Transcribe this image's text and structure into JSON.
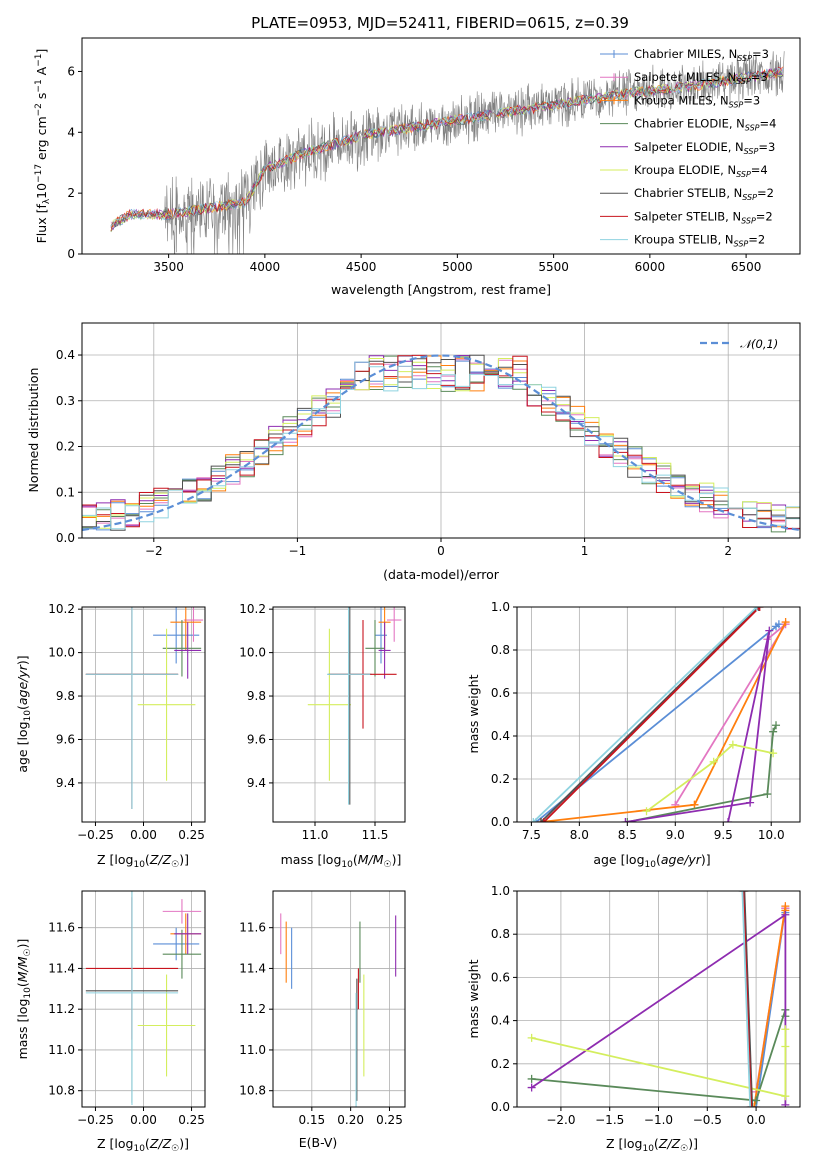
{
  "figure_title": "PLATE=0953, MJD=52411, FIBERID=0615, z=0.39",
  "colors": {
    "Chabrier MILES": "#5b8ed6",
    "Salpeter MILES": "#e377c2",
    "Kroupa MILES": "#ff7f0e",
    "Chabrier ELODIE": "#5a8a5a",
    "Salpeter ELODIE": "#8e2cb0",
    "Kroupa ELODIE": "#d4ee5e",
    "Chabrier STELIB": "#505050",
    "Salpeter STELIB": "#c8141e",
    "Kroupa STELIB": "#8fd3e0",
    "data": "#808080"
  },
  "chart_data": [
    {
      "id": "spectrum",
      "type": "line",
      "title": "PLATE=0953, MJD=52411, FIBERID=0615, z=0.39",
      "xlabel": "wavelength [Angstrom, rest frame]",
      "ylabel": "Flux [f_λ 10^-17 erg cm^-2 s^-1 A^-1]",
      "xlim": [
        3050,
        6780
      ],
      "ylim": [
        0,
        7.1
      ],
      "xticks": [
        3500,
        4000,
        4500,
        5000,
        5500,
        6000,
        6500
      ],
      "yticks": [
        0,
        2,
        4,
        6
      ],
      "continuum": {
        "x": [
          3200,
          3300,
          3500,
          3700,
          3900,
          4000,
          4200,
          4500,
          4800,
          5000,
          5300,
          5600,
          5900,
          6200,
          6500,
          6700
        ],
        "y": [
          0.9,
          1.3,
          1.3,
          1.5,
          1.7,
          2.8,
          3.3,
          3.9,
          4.2,
          4.4,
          4.7,
          5.0,
          5.3,
          5.5,
          5.8,
          6.0
        ]
      },
      "legend": [
        {
          "name": "Chabrier MILES",
          "label": "Chabrier MILES, N",
          "sub": "SSP",
          "suffix": "=3"
        },
        {
          "name": "Salpeter MILES",
          "label": "Salpeter MILES, N",
          "sub": "SSP",
          "suffix": "=3"
        },
        {
          "name": "Kroupa MILES",
          "label": "Kroupa MILES, N",
          "sub": "SSP",
          "suffix": "=3"
        },
        {
          "name": "Chabrier ELODIE",
          "label": "Chabrier ELODIE, N",
          "sub": "SSP",
          "suffix": "=4"
        },
        {
          "name": "Salpeter ELODIE",
          "label": "Salpeter ELODIE, N",
          "sub": "SSP",
          "suffix": "=3"
        },
        {
          "name": "Kroupa ELODIE",
          "label": "Kroupa ELODIE, N",
          "sub": "SSP",
          "suffix": "=4"
        },
        {
          "name": "Chabrier STELIB",
          "label": "Chabrier STELIB, N",
          "sub": "SSP",
          "suffix": "=2"
        },
        {
          "name": "Salpeter STELIB",
          "label": "Salpeter STELIB, N",
          "sub": "SSP",
          "suffix": "=2"
        },
        {
          "name": "Kroupa STELIB",
          "label": "Kroupa STELIB, N",
          "sub": "SSP",
          "suffix": "=2"
        }
      ]
    },
    {
      "id": "residuals",
      "type": "line",
      "xlabel": "(data-model)/error",
      "ylabel": "Normed distribution",
      "xlim": [
        -2.5,
        2.5
      ],
      "ylim": [
        0,
        0.47
      ],
      "xticks": [
        -2,
        -1,
        0,
        1,
        2
      ],
      "yticks": [
        0.0,
        0.1,
        0.2,
        0.3,
        0.4
      ],
      "legend_label": "𝒩(0,1)",
      "grid": true
    },
    {
      "id": "age_vs_Z",
      "type": "errorbar",
      "xlabel": "Z [log10(Z/Z☉)]",
      "ylabel": "age [log10(age/yr)]",
      "xlim": [
        -0.32,
        0.32
      ],
      "ylim": [
        9.22,
        10.21
      ],
      "xticks": [
        -0.25,
        0.0,
        0.25
      ],
      "yticks": [
        9.4,
        9.6,
        9.8,
        10.0,
        10.2
      ],
      "points": [
        {
          "name": "Chabrier MILES",
          "x": 0.17,
          "xerr": 0.12,
          "y": 10.08,
          "yerr": 0.13
        },
        {
          "name": "Salpeter MILES",
          "x": 0.26,
          "xerr": 0.05,
          "y": 10.15,
          "yerr": 0.1
        },
        {
          "name": "Kroupa MILES",
          "x": 0.22,
          "xerr": 0.08,
          "y": 10.14,
          "yerr": 0.13
        },
        {
          "name": "Chabrier ELODIE",
          "x": 0.2,
          "xerr": 0.1,
          "y": 10.02,
          "yerr": 0.13
        },
        {
          "name": "Salpeter ELODIE",
          "x": 0.23,
          "xerr": 0.07,
          "y": 10.01,
          "yerr": 0.13
        },
        {
          "name": "Kroupa ELODIE",
          "x": 0.12,
          "xerr": 0.15,
          "y": 9.76,
          "yerr": 0.35
        },
        {
          "name": "Chabrier STELIB",
          "x": -0.06,
          "xerr": 0.24,
          "y": 9.9,
          "yerr": 0.62
        },
        {
          "name": "Salpeter STELIB",
          "x": -0.06,
          "xerr": 0.24,
          "y": 9.9,
          "yerr": 0.62
        },
        {
          "name": "Kroupa STELIB",
          "x": -0.06,
          "xerr": 0.24,
          "y": 9.9,
          "yerr": 0.62
        }
      ]
    },
    {
      "id": "age_vs_mass",
      "type": "errorbar",
      "xlabel": "mass [log10(M/M☉)]",
      "xlim": [
        10.65,
        11.75
      ],
      "ylim": [
        9.22,
        10.21
      ],
      "xticks": [
        11.0,
        11.5
      ],
      "yticks": [
        9.4,
        9.6,
        9.8,
        10.0,
        10.2
      ],
      "points": [
        {
          "name": "Chabrier MILES",
          "x": 11.55,
          "xerr": 0.05,
          "y": 10.08,
          "yerr": 0.13
        },
        {
          "name": "Salpeter MILES",
          "x": 11.66,
          "xerr": 0.06,
          "y": 10.15,
          "yerr": 0.1
        },
        {
          "name": "Kroupa MILES",
          "x": 11.58,
          "xerr": 0.05,
          "y": 10.14,
          "yerr": 0.13
        },
        {
          "name": "Chabrier ELODIE",
          "x": 11.5,
          "xerr": 0.08,
          "y": 10.02,
          "yerr": 0.13
        },
        {
          "name": "Salpeter ELODIE",
          "x": 11.58,
          "xerr": 0.05,
          "y": 10.01,
          "yerr": 0.13
        },
        {
          "name": "Kroupa ELODIE",
          "x": 11.12,
          "xerr": 0.18,
          "y": 9.76,
          "yerr": 0.35
        },
        {
          "name": "Chabrier STELIB",
          "x": 11.29,
          "xerr": 0.18,
          "y": 9.9,
          "yerr": 0.6
        },
        {
          "name": "Salpeter STELIB",
          "x": 11.4,
          "xerr": 0.28,
          "y": 9.9,
          "yerr": 0.25
        },
        {
          "name": "Kroupa STELIB",
          "x": 11.28,
          "xerr": 0.18,
          "y": 9.9,
          "yerr": 0.6
        }
      ]
    },
    {
      "id": "massweight_vs_age",
      "type": "line",
      "xlabel": "age [log10(age/yr)]",
      "ylabel": "mass weight",
      "xlim": [
        7.35,
        10.3
      ],
      "ylim": [
        0,
        1.0
      ],
      "xticks": [
        7.5,
        8.0,
        8.5,
        9.0,
        9.5,
        10.0
      ],
      "yticks": [
        0.0,
        0.2,
        0.4,
        0.6,
        0.8,
        1.0
      ],
      "series": [
        {
          "name": "Chabrier MILES",
          "x": [
            7.55,
            10.08,
            10.05
          ],
          "y": [
            0.0,
            0.92,
            0.91
          ]
        },
        {
          "name": "Salpeter MILES",
          "x": [
            9.0,
            10.15,
            9.96
          ],
          "y": [
            0.08,
            0.92,
            0.85
          ]
        },
        {
          "name": "Kroupa MILES",
          "x": [
            7.6,
            9.2,
            10.15,
            9.2
          ],
          "y": [
            0.0,
            0.08,
            0.93,
            0.08
          ]
        },
        {
          "name": "Chabrier ELODIE",
          "x": [
            8.5,
            9.96,
            10.02,
            10.05
          ],
          "y": [
            0.0,
            0.13,
            0.42,
            0.45
          ]
        },
        {
          "name": "Salpeter ELODIE",
          "x": [
            8.48,
            9.78,
            9.98,
            9.55
          ],
          "y": [
            0.0,
            0.09,
            0.89,
            0.0
          ]
        },
        {
          "name": "Kroupa ELODIE",
          "x": [
            8.7,
            9.4,
            9.6,
            10.02
          ],
          "y": [
            0.05,
            0.28,
            0.36,
            0.32
          ]
        },
        {
          "name": "Chabrier STELIB",
          "x": [
            7.6,
            9.87
          ],
          "y": [
            0.0,
            1.0
          ]
        },
        {
          "name": "Salpeter STELIB",
          "x": [
            7.63,
            9.88
          ],
          "y": [
            0.0,
            1.0
          ]
        },
        {
          "name": "Kroupa STELIB",
          "x": [
            7.52,
            9.85
          ],
          "y": [
            0.0,
            1.0
          ]
        }
      ]
    },
    {
      "id": "mass_vs_Z",
      "type": "errorbar",
      "xlabel": "Z [log10(Z/Z☉)]",
      "ylabel": "mass [log10(M/M☉)]",
      "xlim": [
        -0.32,
        0.32
      ],
      "ylim": [
        10.72,
        11.78
      ],
      "xticks": [
        -0.25,
        0.0,
        0.25
      ],
      "yticks": [
        10.8,
        11.0,
        11.2,
        11.4,
        11.6
      ],
      "points": [
        {
          "name": "Chabrier MILES",
          "x": 0.17,
          "xerr": 0.12,
          "y": 11.52,
          "yerr": 0.08
        },
        {
          "name": "Salpeter MILES",
          "x": 0.2,
          "xerr": 0.1,
          "y": 11.68,
          "yerr": 0.06
        },
        {
          "name": "Kroupa MILES",
          "x": 0.22,
          "xerr": 0.08,
          "y": 11.57,
          "yerr": 0.1
        },
        {
          "name": "Chabrier ELODIE",
          "x": 0.2,
          "xerr": 0.1,
          "y": 11.47,
          "yerr": 0.12
        },
        {
          "name": "Salpeter ELODIE",
          "x": 0.23,
          "xerr": 0.07,
          "y": 11.57,
          "yerr": 0.1
        },
        {
          "name": "Kroupa ELODIE",
          "x": 0.12,
          "xerr": 0.15,
          "y": 11.12,
          "yerr": 0.25
        },
        {
          "name": "Chabrier STELIB",
          "x": -0.06,
          "xerr": 0.24,
          "y": 11.29,
          "yerr": 0.55
        },
        {
          "name": "Salpeter STELIB",
          "x": -0.06,
          "xerr": 0.24,
          "y": 11.4,
          "yerr": 0.35
        },
        {
          "name": "Kroupa STELIB",
          "x": -0.06,
          "xerr": 0.24,
          "y": 11.28,
          "yerr": 0.55
        }
      ]
    },
    {
      "id": "mass_vs_ebv",
      "type": "errorbar",
      "xlabel": "E(B-V)",
      "xlim": [
        0.1,
        0.27
      ],
      "ylim": [
        10.72,
        11.78
      ],
      "xticks": [
        0.15,
        0.2,
        0.25
      ],
      "yticks": [
        10.8,
        11.0,
        11.2,
        11.4,
        11.6
      ],
      "points": [
        {
          "name": "Chabrier MILES",
          "x": 0.124,
          "y": 11.45,
          "yerr": 0.15
        },
        {
          "name": "Salpeter MILES",
          "x": 0.11,
          "y": 11.57,
          "yerr": 0.1
        },
        {
          "name": "Kroupa MILES",
          "x": 0.117,
          "y": 11.48,
          "yerr": 0.15
        },
        {
          "name": "Chabrier ELODIE",
          "x": 0.212,
          "y": 11.48,
          "yerr": 0.15
        },
        {
          "name": "Salpeter ELODIE",
          "x": 0.258,
          "y": 11.51,
          "yerr": 0.15
        },
        {
          "name": "Kroupa ELODIE",
          "x": 0.217,
          "y": 11.12,
          "yerr": 0.25
        },
        {
          "name": "Chabrier STELIB",
          "x": 0.208,
          "y": 11.05,
          "yerr": 0.3
        },
        {
          "name": "Salpeter STELIB",
          "x": 0.21,
          "y": 11.3,
          "yerr": 0.1
        },
        {
          "name": "Kroupa STELIB",
          "x": 0.207,
          "y": 11.0,
          "yerr": 0.28
        }
      ]
    },
    {
      "id": "massweight_vs_Z",
      "type": "line",
      "xlabel": "Z [log10(Z/Z☉)]",
      "ylabel": "mass weight",
      "xlim": [
        -2.45,
        0.45
      ],
      "ylim": [
        0,
        1.0
      ],
      "xticks": [
        -2.0,
        -1.5,
        -1.0,
        -0.5,
        0.0
      ],
      "yticks": [
        0.0,
        0.2,
        0.4,
        0.6,
        0.8,
        1.0
      ],
      "series": [
        {
          "name": "Chabrier MILES",
          "x": [
            0.0,
            0.3,
            0.3
          ],
          "y": [
            0.0,
            0.92,
            0.9
          ]
        },
        {
          "name": "Salpeter MILES",
          "x": [
            0.0,
            0.3,
            0.3
          ],
          "y": [
            0.07,
            0.92,
            0.92
          ]
        },
        {
          "name": "Kroupa MILES",
          "x": [
            -0.02,
            0.3,
            0.3
          ],
          "y": [
            0.0,
            0.93,
            0.91
          ]
        },
        {
          "name": "Chabrier ELODIE",
          "x": [
            -2.3,
            0.0,
            0.3,
            0.3
          ],
          "y": [
            0.13,
            0.03,
            0.45,
            0.42
          ]
        },
        {
          "name": "Salpeter ELODIE",
          "x": [
            -2.3,
            0.3,
            0.3
          ],
          "y": [
            0.09,
            0.89,
            0.01
          ]
        },
        {
          "name": "Kroupa ELODIE",
          "x": [
            -2.3,
            0.3,
            0.3,
            0.3
          ],
          "y": [
            0.32,
            0.05,
            0.36,
            0.28
          ]
        },
        {
          "name": "Chabrier STELIB",
          "x": [
            -0.12,
            -0.04
          ],
          "y": [
            1.0,
            0.0
          ]
        },
        {
          "name": "Salpeter STELIB",
          "x": [
            -0.13,
            -0.05
          ],
          "y": [
            1.0,
            0.0
          ]
        },
        {
          "name": "Kroupa STELIB",
          "x": [
            -0.14,
            -0.06
          ],
          "y": [
            1.0,
            0.0
          ]
        }
      ]
    }
  ]
}
